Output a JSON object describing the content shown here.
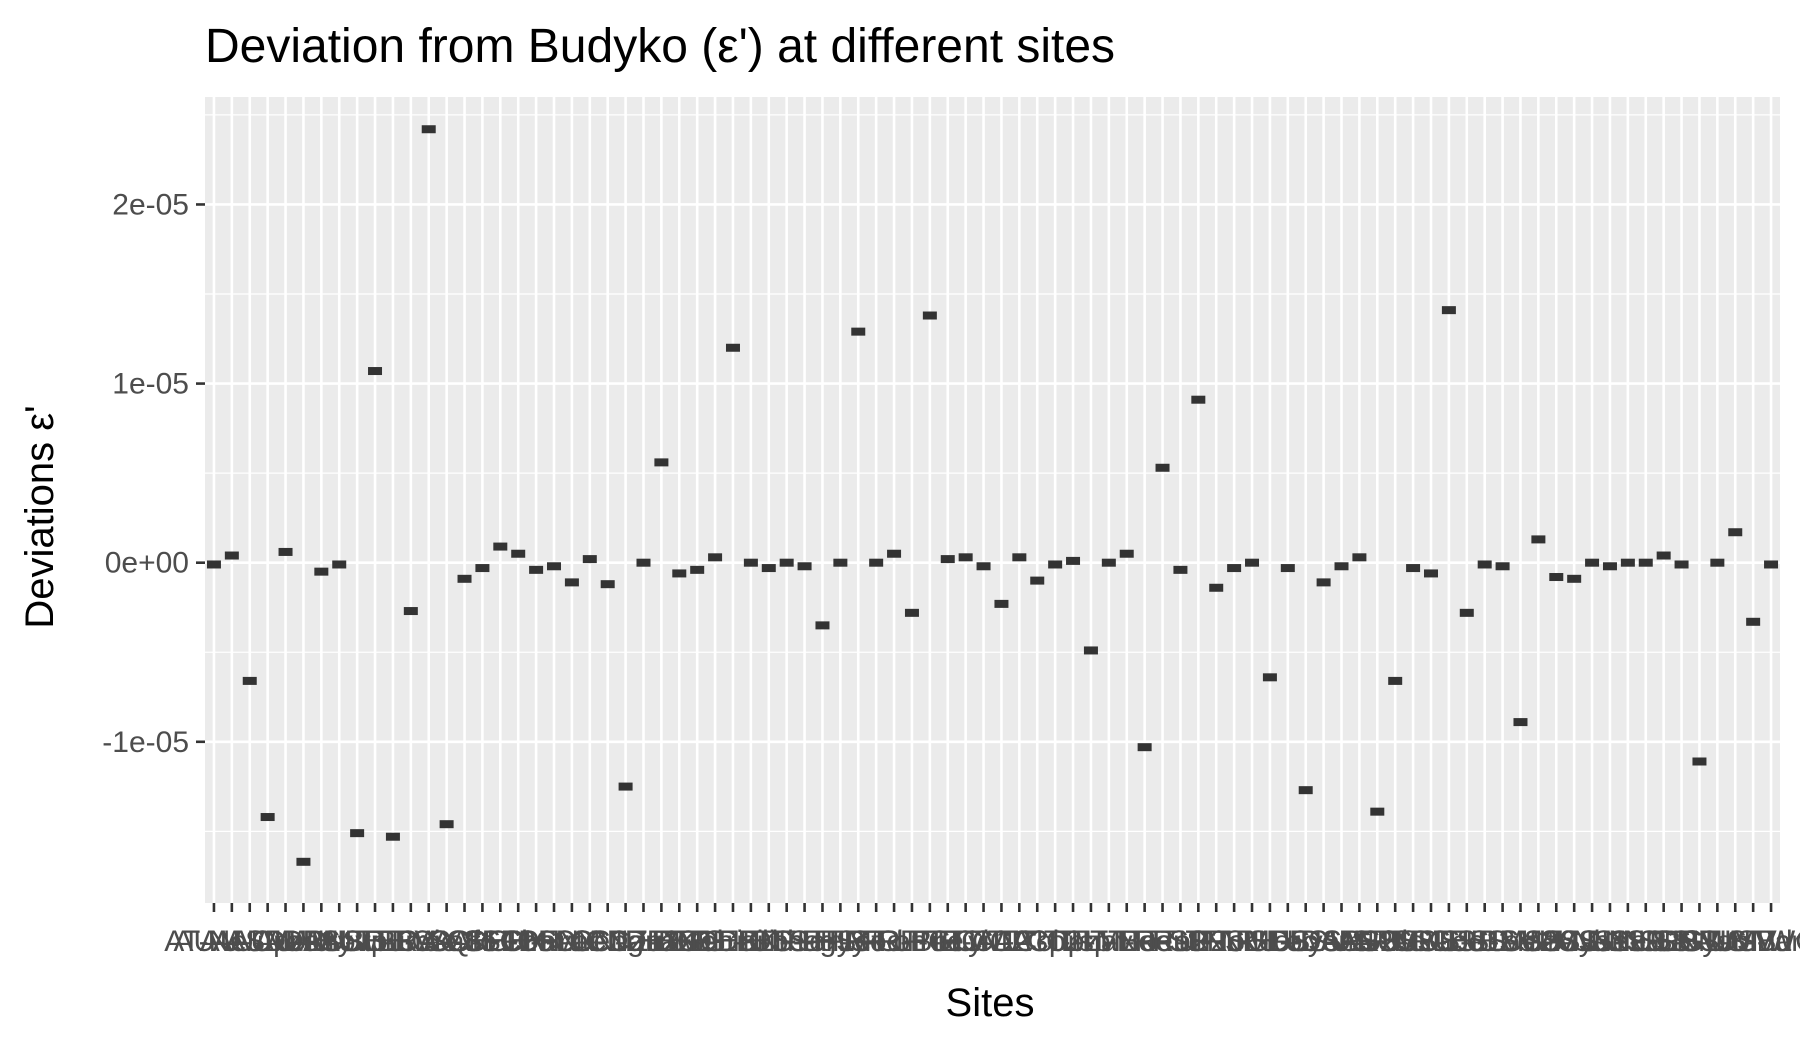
{
  "chart_data": {
    "type": "scatter",
    "title": "Deviation from Budyko (ε') at different sites",
    "xlabel": "Sites",
    "ylabel": "Deviations ε'",
    "ylim": [
      -1.9e-05,
      2.6e-05
    ],
    "yticks": [
      {
        "value": 2e-05,
        "label": "2e-05"
      },
      {
        "value": 1e-05,
        "label": "1e-05"
      },
      {
        "value": 0,
        "label": "0e+00"
      },
      {
        "value": -1e-05,
        "label": "-1e-05"
      }
    ],
    "grid": true,
    "background": "#ebebeb",
    "point_color": "#333333",
    "values": [
      -1e-07,
      4e-07,
      -6.6e-06,
      -1.42e-05,
      6e-07,
      -1.67e-05,
      -5e-07,
      -1e-07,
      -1.51e-05,
      1.07e-05,
      -1.53e-05,
      -2.7e-06,
      2.42e-05,
      -1.46e-05,
      -9e-07,
      -3e-07,
      9e-07,
      5e-07,
      -4e-07,
      -2e-07,
      -1.1e-06,
      2e-07,
      -1.2e-06,
      -1.25e-05,
      0.0,
      5.6e-06,
      -6e-07,
      -4e-07,
      3e-07,
      1.2e-05,
      0.0,
      -3e-07,
      0.0,
      -2e-07,
      -3.5e-06,
      0.0,
      1.29e-05,
      0.0,
      5e-07,
      -2.8e-06,
      1.38e-05,
      2e-07,
      3e-07,
      -2e-07,
      -2.3e-06,
      3e-07,
      -1e-06,
      -1e-07,
      1e-07,
      -4.9e-06,
      0.0,
      5e-07,
      -1.03e-05,
      5.3e-06,
      -4e-07,
      9.1e-06,
      -1.4e-06,
      -3e-07,
      0.0,
      -6.4e-06,
      -3e-07,
      -1.27e-05,
      -1.1e-06,
      -2e-07,
      3e-07,
      -1.39e-05,
      -6.6e-06,
      -3e-07,
      -6e-07,
      1.41e-05,
      -2.8e-06,
      -1e-07,
      -2e-07,
      -8.9e-06,
      1.3e-06,
      -8e-07,
      -9e-07,
      0.0,
      -2e-07,
      0.0,
      0.0,
      4e-07,
      -1e-07,
      -1.11e-05,
      0.0,
      1.7e-06,
      -3.3e-06,
      -1e-07
    ],
    "categories": [
      "AT-Neu",
      "AU-ASM",
      "AU-Cpr",
      "AU-DaP",
      "AU-DaS",
      "AU-Dry",
      "AU-How",
      "AU-Stp",
      "AU-TTE",
      "AU-Tum",
      "BE-Bra",
      "BE-Vie",
      "BR-Sa3",
      "CA-Qfo",
      "CA-SF1",
      "CA-SF2",
      "CH-Cha",
      "CH-Dav",
      "CH-Fru",
      "CH-Lae",
      "CH-Oe1",
      "CN-Cng",
      "CN-Dan",
      "CN-Du2",
      "CN-HaM",
      "CZ-BK1",
      "DE-Geb",
      "DE-Gri",
      "DE-Hai",
      "DE-Kli",
      "DE-Obe",
      "DE-Tha",
      "DK-Sor",
      "ES-LgS",
      "FI-Hyy",
      "FI-Let",
      "FI-Sod",
      "FR-Fon",
      "FR-LBr",
      "FR-Pue",
      "GF-Guy",
      "IT-BCi",
      "IT-CA1",
      "IT-CA2",
      "IT-CA3",
      "IT-Col",
      "IT-Cp2",
      "IT-Cpz",
      "IT-Isp",
      "IT-Lav",
      "IT-MBo",
      "IT-Noe",
      "IT-Ren",
      "IT-Ro2",
      "IT-SR2",
      "IT-SRo",
      "IT-Tor",
      "JP-SMF",
      "NL-Hor",
      "NL-Loo",
      "RU-Fyo",
      "SD-Dem",
      "US-AR1",
      "US-AR2",
      "US-ARM",
      "US-Blo",
      "US-CRT",
      "US-GLE",
      "US-Goo",
      "US-Ha1",
      "US-IB2",
      "US-Los",
      "US-Me2",
      "US-Me6",
      "US-MMS",
      "US-Myb",
      "US-Ne1",
      "US-Ne2",
      "US-Ne3",
      "US-NR1",
      "US-SRG",
      "US-SRM",
      "US-Syv",
      "US-Ton",
      "US-UMB",
      "US-UMd",
      "US-Var",
      "US-WCr"
    ]
  }
}
